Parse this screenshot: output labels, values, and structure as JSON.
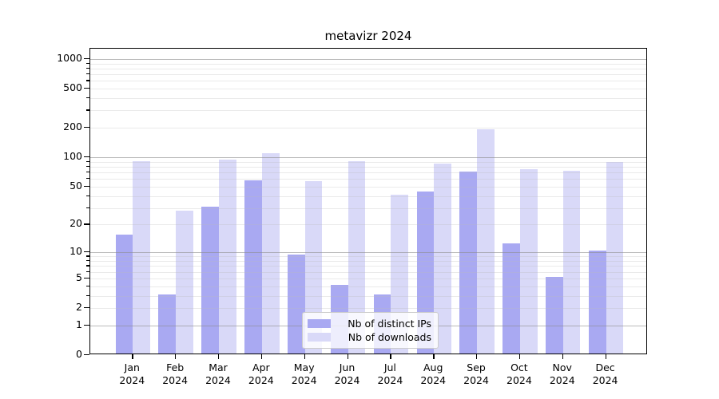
{
  "title": "metavizr 2024",
  "colors": {
    "distinct_ips": "#a9a9f2",
    "downloads": "#d9d9f8",
    "grid_major": "rgba(140,140,140,0.60)",
    "grid_minor": "rgba(185,185,185,0.30)",
    "axis": "#000000"
  },
  "legend": {
    "items": [
      {
        "label": "Nb of distinct IPs",
        "color_key": "distinct_ips"
      },
      {
        "label": "Nb of downloads",
        "color_key": "downloads"
      }
    ]
  },
  "y_axis": {
    "ticks": [
      {
        "label": "1000",
        "value": 1000
      },
      {
        "label": "500",
        "value": 500
      },
      {
        "label": "200",
        "value": 200
      },
      {
        "label": "100",
        "value": 100
      },
      {
        "label": "50",
        "value": 50
      },
      {
        "label": "20",
        "value": 20
      },
      {
        "label": "10",
        "value": 10
      },
      {
        "label": "5",
        "value": 5
      },
      {
        "label": "2",
        "value": 2
      },
      {
        "label": "1",
        "value": 1
      },
      {
        "label": "0",
        "value": 0
      }
    ]
  },
  "x_axis": {
    "months": [
      "Jan",
      "Feb",
      "Mar",
      "Apr",
      "May",
      "Jun",
      "Jul",
      "Aug",
      "Sep",
      "Oct",
      "Nov",
      "Dec"
    ],
    "year": "2024"
  },
  "chart_data": {
    "type": "bar",
    "title": "metavizr 2024",
    "categories": [
      "Jan 2024",
      "Feb 2024",
      "Mar 2024",
      "Apr 2024",
      "May 2024",
      "Jun 2024",
      "Jul 2024",
      "Aug 2024",
      "Sep 2024",
      "Oct 2024",
      "Nov 2024",
      "Dec 2024"
    ],
    "series": [
      {
        "name": "Nb of distinct IPs",
        "values": [
          15,
          3,
          30,
          56,
          9,
          4,
          3,
          43,
          69,
          12,
          5,
          10
        ]
      },
      {
        "name": "Nb of downloads",
        "values": [
          88,
          27,
          91,
          106,
          55,
          88,
          40,
          83,
          186,
          73,
          70,
          86
        ]
      }
    ],
    "xlabel": "",
    "ylabel": "",
    "yscale": "log10(1+x)",
    "ylim": [
      0,
      1270
    ],
    "grid": true,
    "legend_position": "lower center"
  }
}
